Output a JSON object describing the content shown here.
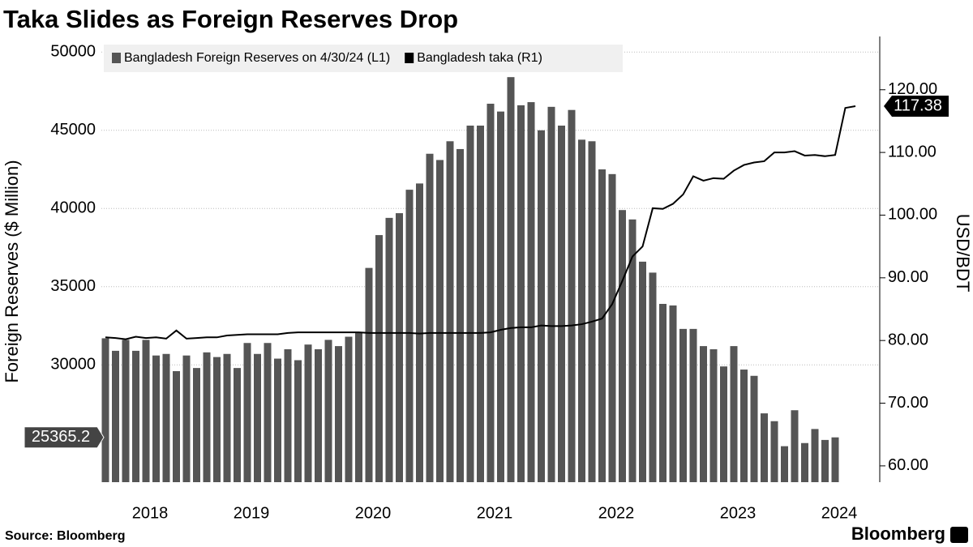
{
  "chart_data": {
    "type": "bar+line",
    "title": "Taka Slides as Foreign Reserves Drop",
    "y_label": "Foreign Reserves ($ Million)",
    "y2_label": "USD/BDT",
    "source": "Source: Bloomberg",
    "brand": "Bloomberg",
    "categories": [
      null,
      null,
      null,
      null,
      "2018",
      null,
      null,
      null,
      null,
      null,
      null,
      null,
      null,
      null,
      "2019",
      null,
      null,
      null,
      null,
      null,
      null,
      null,
      null,
      null,
      null,
      null,
      "2020",
      null,
      null,
      null,
      null,
      null,
      null,
      null,
      null,
      null,
      null,
      null,
      "2021",
      null,
      null,
      null,
      null,
      null,
      null,
      null,
      null,
      null,
      null,
      null,
      "2022",
      null,
      null,
      null,
      null,
      null,
      null,
      null,
      null,
      null,
      null,
      null,
      "2023",
      null,
      null,
      null,
      null,
      null,
      null,
      null,
      null,
      null,
      "2024",
      null,
      null
    ],
    "series": [
      {
        "name": "Bangladesh Foreign Reserves on 4/30/24 (L1)",
        "color": "#555555",
        "type": "bar",
        "axis": "y",
        "values": [
          31700,
          30900,
          31600,
          30900,
          31600,
          30600,
          30700,
          29600,
          30600,
          29800,
          30800,
          30500,
          30700,
          29800,
          31400,
          30700,
          31400,
          30400,
          31000,
          30300,
          31300,
          31000,
          31600,
          31200,
          31800,
          32100,
          36200,
          38300,
          39400,
          39700,
          41200,
          41600,
          43500,
          43100,
          44300,
          43800,
          45300,
          45300,
          46700,
          46200,
          48400,
          46600,
          46800,
          45000,
          46500,
          45300,
          46300,
          44400,
          44300,
          42500,
          42200,
          39900,
          39300,
          36600,
          35900,
          33900,
          33800,
          32300,
          32300,
          31200,
          31000,
          29900,
          31200,
          29700,
          29300,
          26900,
          26400,
          24800,
          27100,
          25000,
          25900,
          25200,
          25365.2,
          null,
          null
        ]
      },
      {
        "name": "Bangladesh taka (R1)",
        "color": "#000000",
        "type": "line",
        "axis": "y2",
        "values": [
          80.5,
          80.4,
          80.2,
          80.6,
          80.4,
          80.5,
          80.3,
          81.6,
          80.3,
          80.4,
          80.5,
          80.5,
          80.8,
          80.9,
          81.0,
          81.0,
          81.0,
          81.0,
          81.2,
          81.3,
          81.3,
          81.3,
          81.3,
          81.3,
          81.3,
          81.3,
          81.2,
          81.2,
          81.2,
          81.2,
          81.2,
          81.1,
          81.2,
          81.2,
          81.2,
          81.2,
          81.2,
          81.2,
          81.3,
          81.7,
          82.0,
          82.1,
          82.1,
          82.4,
          82.3,
          82.3,
          82.4,
          82.6,
          83.0,
          83.5,
          85.8,
          89.5,
          93.4,
          95.0,
          101.1,
          101.0,
          101.8,
          103.3,
          106.2,
          105.5,
          105.9,
          105.8,
          107.1,
          108.0,
          108.4,
          108.6,
          110.0,
          110.0,
          110.2,
          109.5,
          109.6,
          109.4,
          109.6,
          117.1,
          117.38
        ]
      }
    ],
    "ylim": [
      22500,
      51000
    ],
    "yticks": [
      30000,
      35000,
      40000,
      45000,
      50000
    ],
    "y2lim": [
      57.4,
      128.5
    ],
    "y2ticks": [
      {
        "value": 60,
        "label": "60.00"
      },
      {
        "value": 70,
        "label": "70.00"
      },
      {
        "value": 80,
        "label": "80.00"
      },
      {
        "value": 90,
        "label": "90.00"
      },
      {
        "value": 100,
        "label": "100.00"
      },
      {
        "value": 110,
        "label": "110.00"
      },
      {
        "value": 120,
        "label": "120.00"
      }
    ],
    "grid": true,
    "legend": "top-left"
  }
}
